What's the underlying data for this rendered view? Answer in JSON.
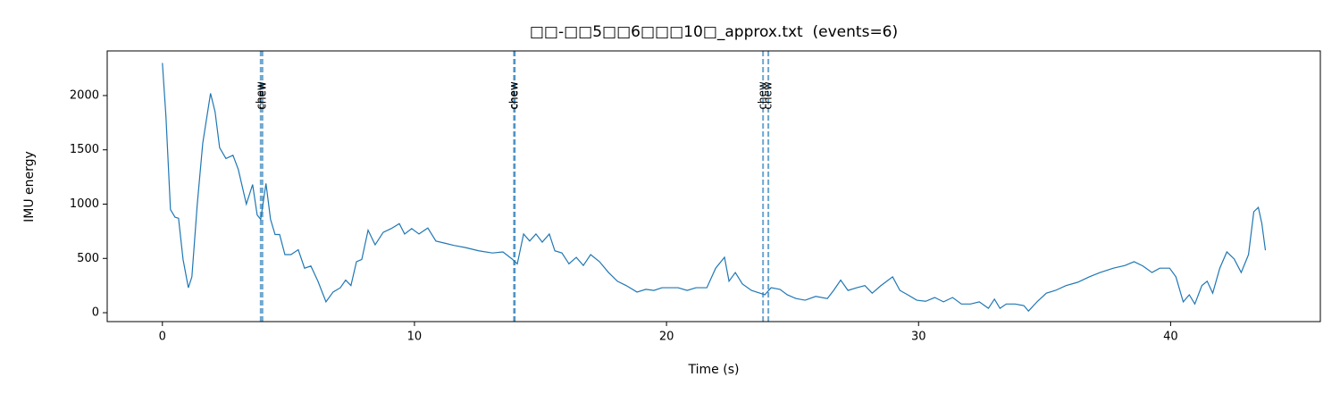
{
  "chart_data": {
    "type": "line",
    "title": "□□-□□5□□6□□□10□_approx.txt  (events=6)",
    "xlabel": "Time (s)",
    "ylabel": "IMU energy",
    "xlim": [
      -2.19,
      45.94
    ],
    "ylim": [
      -82,
      2411
    ],
    "xticks": [
      0,
      10,
      20,
      30,
      40
    ],
    "yticks": [
      0,
      500,
      1000,
      1500,
      2000
    ],
    "x": [
      0,
      0.14,
      0.32,
      0.5,
      0.64,
      0.82,
      1.03,
      1.17,
      1.38,
      1.6,
      1.91,
      2.09,
      2.27,
      2.52,
      2.8,
      3.01,
      3.33,
      3.58,
      3.76,
      3.9,
      4.11,
      4.29,
      4.47,
      4.65,
      4.86,
      5.1,
      5.39,
      5.64,
      5.89,
      6.17,
      6.49,
      6.77,
      7.06,
      7.27,
      7.48,
      7.7,
      7.91,
      8.16,
      8.44,
      8.76,
      9.08,
      9.4,
      9.61,
      9.89,
      10.18,
      10.53,
      10.85,
      11.21,
      11.56,
      12.02,
      12.55,
      13.09,
      13.51,
      13.87,
      14.08,
      14.33,
      14.57,
      14.82,
      15.07,
      15.35,
      15.57,
      15.85,
      16.13,
      16.42,
      16.7,
      16.99,
      17.34,
      17.7,
      18.05,
      18.4,
      18.83,
      19.18,
      19.5,
      19.82,
      20.18,
      20.46,
      20.82,
      21.17,
      21.6,
      21.95,
      22.3,
      22.48,
      22.73,
      23.01,
      23.37,
      23.9,
      24.15,
      24.5,
      24.79,
      25.14,
      25.5,
      25.92,
      26.38,
      26.63,
      26.91,
      27.2,
      27.55,
      27.87,
      28.16,
      28.51,
      28.97,
      29.26,
      29.57,
      29.93,
      30.28,
      30.64,
      30.99,
      31.35,
      31.7,
      32.06,
      32.41,
      32.77,
      33.01,
      33.23,
      33.48,
      33.83,
      34.18,
      34.36,
      34.72,
      35.07,
      35.43,
      35.85,
      36.31,
      36.77,
      37.2,
      37.73,
      38.19,
      38.55,
      38.9,
      39.26,
      39.57,
      39.96,
      40.21,
      40.5,
      40.74,
      40.96,
      41.24,
      41.45,
      41.67,
      41.95,
      42.23,
      42.52,
      42.8,
      43.09,
      43.3,
      43.48,
      43.62,
      43.76
    ],
    "series": [
      {
        "color": "#1f77b4",
        "values": [
          2300,
          1810,
          950,
          880,
          870,
          490,
          230,
          330,
          990,
          1560,
          2020,
          1850,
          1520,
          1420,
          1450,
          1320,
          1000,
          1180,
          900,
          860,
          1190,
          860,
          720,
          720,
          535,
          535,
          580,
          410,
          430,
          290,
          100,
          190,
          230,
          300,
          250,
          470,
          490,
          760,
          625,
          740,
          775,
          820,
          725,
          775,
          725,
          780,
          660,
          640,
          620,
          600,
          570,
          550,
          560,
          495,
          450,
          725,
          660,
          725,
          650,
          725,
          570,
          550,
          450,
          510,
          435,
          535,
          470,
          370,
          290,
          250,
          190,
          215,
          205,
          230,
          230,
          230,
          205,
          230,
          230,
          410,
          510,
          290,
          370,
          265,
          205,
          165,
          230,
          215,
          165,
          130,
          115,
          150,
          130,
          205,
          300,
          205,
          230,
          250,
          180,
          250,
          330,
          205,
          165,
          115,
          105,
          140,
          100,
          140,
          80,
          80,
          100,
          40,
          125,
          40,
          80,
          80,
          65,
          15,
          105,
          180,
          205,
          250,
          280,
          330,
          370,
          410,
          435,
          470,
          430,
          370,
          410,
          410,
          330,
          100,
          165,
          80,
          250,
          290,
          180,
          410,
          560,
          495,
          370,
          535,
          930,
          970,
          820,
          575
        ]
      }
    ],
    "events": [
      {
        "x": 3.9,
        "label": "chew"
      },
      {
        "x": 3.97,
        "label": "chew"
      },
      {
        "x": 13.95,
        "label": "chew"
      },
      {
        "x": 13.98,
        "label": "chew"
      },
      {
        "x": 23.83,
        "label": "chew"
      },
      {
        "x": 24.04,
        "label": "chew"
      }
    ],
    "event_color": "#1f77b4"
  }
}
